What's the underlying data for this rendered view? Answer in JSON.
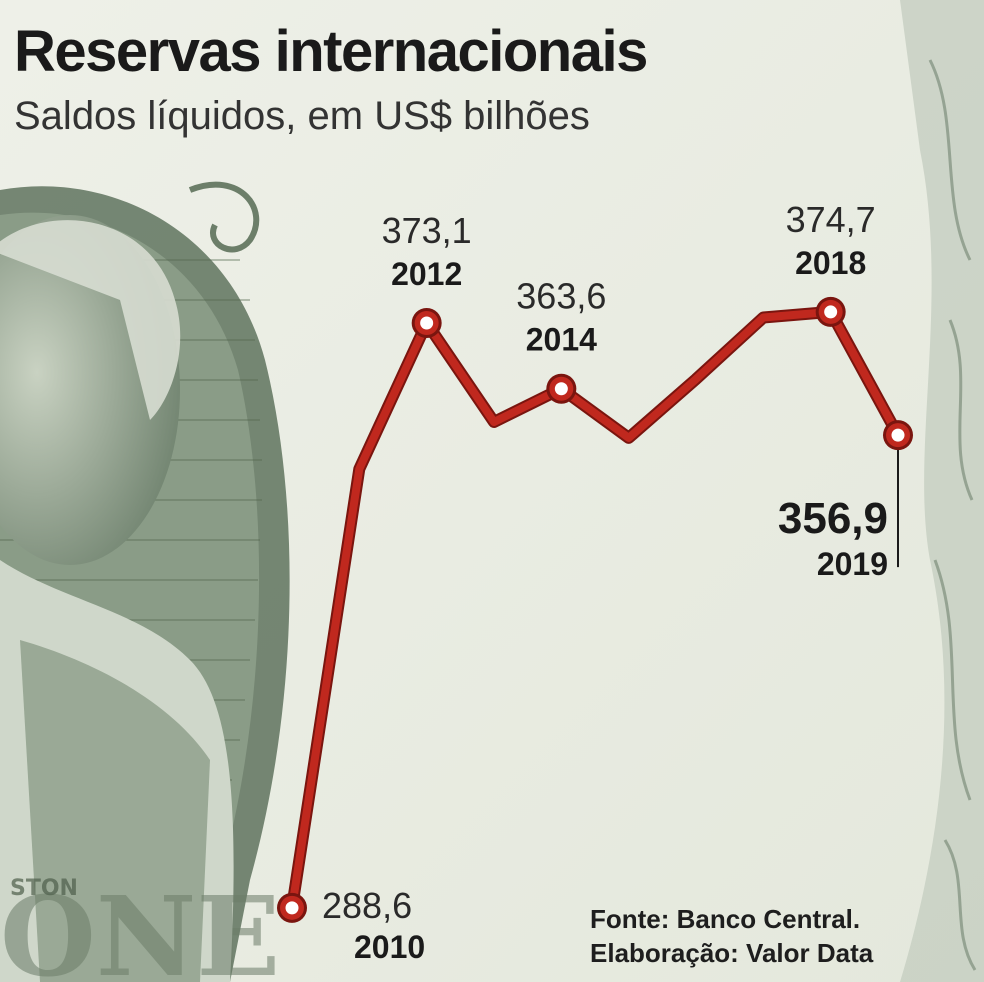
{
  "title": "Reservas internacionais",
  "subtitle": "Saldos líquidos, em US$ bilhões",
  "source": {
    "line1": "Fonte: Banco Central.",
    "line2": "Elaboração: Valor Data"
  },
  "colors": {
    "line": "#c0281e",
    "line_dark": "#7a150f",
    "background": "#e9ece2",
    "engraving": "#7e8f7c"
  },
  "chart_data": {
    "type": "line",
    "title": "Reservas internacionais",
    "subtitle": "Saldos líquidos, em US$ bilhões",
    "x": [
      2010,
      2011,
      2012,
      2013,
      2014,
      2015,
      2016,
      2017,
      2018,
      2019
    ],
    "series": [
      {
        "values": [
          288.6,
          352.0,
          373.1,
          358.8,
          363.6,
          356.5,
          365.0,
          373.9,
          374.7,
          356.9
        ]
      }
    ],
    "labeled_points": [
      {
        "x": 2010,
        "value": "288,6",
        "year": "2010"
      },
      {
        "x": 2012,
        "value": "373,1",
        "year": "2012"
      },
      {
        "x": 2014,
        "value": "363,6",
        "year": "2014"
      },
      {
        "x": 2018,
        "value": "374,7",
        "year": "2018"
      },
      {
        "x": 2019,
        "value": "356,9",
        "year": "2019"
      }
    ],
    "ylim": [
      288,
      377
    ],
    "grid": false
  }
}
